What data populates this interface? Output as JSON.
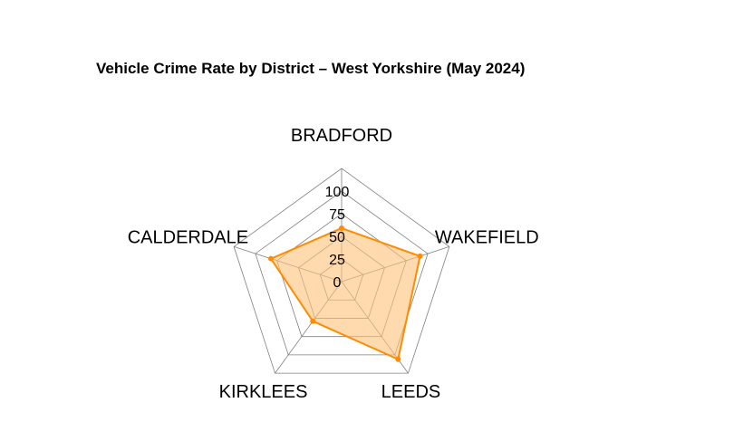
{
  "chart_data": {
    "type": "radar",
    "title": "Vehicle Crime Rate by District – West Yorkshire (May 2024)",
    "categories": [
      "BRADFORD",
      "WAKEFIELD",
      "LEEDS",
      "KIRKLEES",
      "CALDERDALE"
    ],
    "series": [
      {
        "values": [
          59,
          91,
          106,
          54,
          82
        ]
      }
    ],
    "rlim": [
      0,
      100
    ],
    "rticks": [
      "0",
      "25",
      "50",
      "75",
      "100"
    ],
    "grid": true,
    "legend": "none",
    "colors": {
      "series_line": "#ff8c00",
      "series_fill": "#ffc27a",
      "grid": "#808080"
    }
  }
}
